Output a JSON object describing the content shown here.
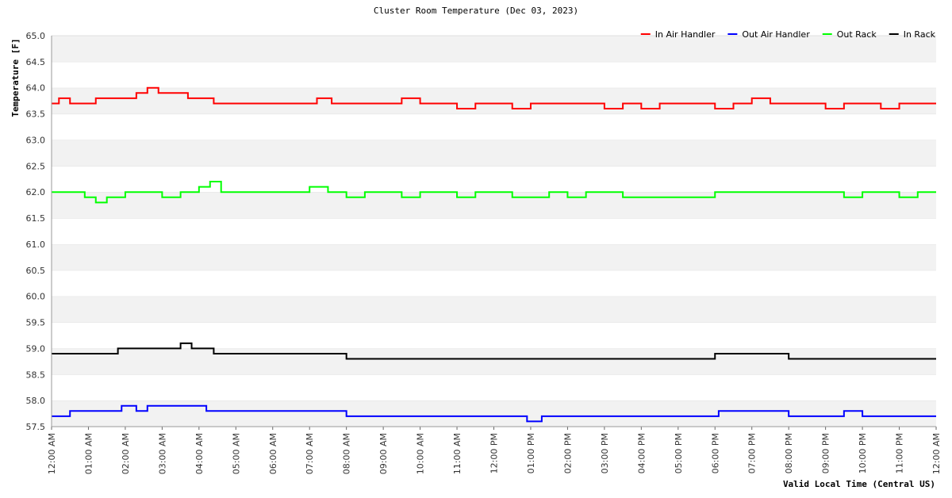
{
  "chart_data": {
    "type": "line",
    "title": "Cluster Room Temperature (Dec 03, 2023)",
    "xlabel": "Valid Local Time (Central US)",
    "ylabel": "Temperature [F]",
    "ylim": [
      57.5,
      65.0
    ],
    "y_ticks": [
      "57.5",
      "58.0",
      "58.5",
      "59.0",
      "59.5",
      "60.0",
      "60.5",
      "61.0",
      "61.5",
      "62.0",
      "62.5",
      "63.0",
      "63.5",
      "64.0",
      "64.5",
      "65.0"
    ],
    "x_range_hours": [
      0,
      24
    ],
    "x_ticks": [
      "12:00 AM",
      "01:00 AM",
      "02:00 AM",
      "03:00 AM",
      "04:00 AM",
      "05:00 AM",
      "06:00 AM",
      "07:00 AM",
      "08:00 AM",
      "09:00 AM",
      "10:00 AM",
      "11:00 AM",
      "12:00 PM",
      "01:00 PM",
      "02:00 PM",
      "03:00 PM",
      "04:00 PM",
      "05:00 PM",
      "06:00 PM",
      "07:00 PM",
      "08:00 PM",
      "09:00 PM",
      "10:00 PM",
      "11:00 PM",
      "12:00 AM"
    ],
    "grid": "horizontal alternating bands",
    "legend_position": "top-right",
    "series": [
      {
        "name": "In Air Handler",
        "color": "#ff0000",
        "points": [
          [
            0.0,
            63.7
          ],
          [
            0.2,
            63.8
          ],
          [
            0.5,
            63.7
          ],
          [
            0.8,
            63.7
          ],
          [
            1.2,
            63.8
          ],
          [
            1.6,
            63.8
          ],
          [
            2.0,
            63.8
          ],
          [
            2.3,
            63.9
          ],
          [
            2.6,
            64.0
          ],
          [
            2.9,
            63.9
          ],
          [
            3.3,
            63.9
          ],
          [
            3.7,
            63.8
          ],
          [
            4.0,
            63.8
          ],
          [
            4.4,
            63.7
          ],
          [
            4.8,
            63.7
          ],
          [
            5.2,
            63.7
          ],
          [
            5.6,
            63.7
          ],
          [
            6.0,
            63.7
          ],
          [
            6.4,
            63.7
          ],
          [
            6.8,
            63.7
          ],
          [
            7.2,
            63.8
          ],
          [
            7.6,
            63.7
          ],
          [
            8.0,
            63.7
          ],
          [
            8.5,
            63.7
          ],
          [
            9.0,
            63.7
          ],
          [
            9.5,
            63.8
          ],
          [
            10.0,
            63.7
          ],
          [
            10.5,
            63.7
          ],
          [
            11.0,
            63.6
          ],
          [
            11.5,
            63.7
          ],
          [
            12.0,
            63.7
          ],
          [
            12.5,
            63.6
          ],
          [
            13.0,
            63.7
          ],
          [
            13.5,
            63.7
          ],
          [
            14.0,
            63.7
          ],
          [
            14.5,
            63.7
          ],
          [
            15.0,
            63.6
          ],
          [
            15.5,
            63.7
          ],
          [
            16.0,
            63.6
          ],
          [
            16.5,
            63.7
          ],
          [
            17.0,
            63.7
          ],
          [
            17.5,
            63.7
          ],
          [
            18.0,
            63.6
          ],
          [
            18.5,
            63.7
          ],
          [
            19.0,
            63.8
          ],
          [
            19.5,
            63.7
          ],
          [
            20.0,
            63.7
          ],
          [
            20.5,
            63.7
          ],
          [
            21.0,
            63.6
          ],
          [
            21.5,
            63.7
          ],
          [
            22.0,
            63.7
          ],
          [
            22.5,
            63.6
          ],
          [
            23.0,
            63.7
          ],
          [
            23.5,
            63.7
          ],
          [
            24.0,
            63.7
          ]
        ]
      },
      {
        "name": "Out Air Handler",
        "color": "#0000ff",
        "points": [
          [
            0.0,
            57.7
          ],
          [
            0.5,
            57.8
          ],
          [
            1.0,
            57.8
          ],
          [
            1.5,
            57.8
          ],
          [
            1.9,
            57.9
          ],
          [
            2.3,
            57.8
          ],
          [
            2.6,
            57.9
          ],
          [
            3.0,
            57.9
          ],
          [
            3.5,
            57.9
          ],
          [
            4.2,
            57.8
          ],
          [
            4.6,
            57.8
          ],
          [
            5.0,
            57.8
          ],
          [
            5.5,
            57.8
          ],
          [
            6.0,
            57.8
          ],
          [
            6.5,
            57.8
          ],
          [
            7.0,
            57.8
          ],
          [
            7.5,
            57.8
          ],
          [
            8.0,
            57.7
          ],
          [
            8.5,
            57.7
          ],
          [
            9.0,
            57.7
          ],
          [
            9.5,
            57.7
          ],
          [
            10.0,
            57.7
          ],
          [
            10.5,
            57.7
          ],
          [
            11.0,
            57.7
          ],
          [
            11.5,
            57.7
          ],
          [
            12.0,
            57.7
          ],
          [
            12.5,
            57.7
          ],
          [
            12.9,
            57.6
          ],
          [
            13.3,
            57.7
          ],
          [
            14.0,
            57.7
          ],
          [
            14.5,
            57.7
          ],
          [
            15.0,
            57.7
          ],
          [
            15.5,
            57.7
          ],
          [
            16.0,
            57.7
          ],
          [
            16.5,
            57.7
          ],
          [
            17.0,
            57.7
          ],
          [
            17.5,
            57.7
          ],
          [
            18.1,
            57.8
          ],
          [
            18.5,
            57.8
          ],
          [
            19.0,
            57.8
          ],
          [
            19.5,
            57.8
          ],
          [
            20.0,
            57.7
          ],
          [
            20.5,
            57.7
          ],
          [
            21.0,
            57.7
          ],
          [
            21.5,
            57.8
          ],
          [
            22.0,
            57.7
          ],
          [
            22.5,
            57.7
          ],
          [
            23.0,
            57.7
          ],
          [
            23.5,
            57.7
          ],
          [
            24.0,
            57.7
          ]
        ]
      },
      {
        "name": "Out Rack",
        "color": "#00ff00",
        "points": [
          [
            0.0,
            62.0
          ],
          [
            0.5,
            62.0
          ],
          [
            0.9,
            61.9
          ],
          [
            1.2,
            61.8
          ],
          [
            1.5,
            61.9
          ],
          [
            2.0,
            62.0
          ],
          [
            2.5,
            62.0
          ],
          [
            3.0,
            61.9
          ],
          [
            3.5,
            62.0
          ],
          [
            4.0,
            62.1
          ],
          [
            4.3,
            62.2
          ],
          [
            4.6,
            62.0
          ],
          [
            5.0,
            62.0
          ],
          [
            5.5,
            62.0
          ],
          [
            6.0,
            62.0
          ],
          [
            6.5,
            62.0
          ],
          [
            7.0,
            62.1
          ],
          [
            7.5,
            62.0
          ],
          [
            8.0,
            61.9
          ],
          [
            8.5,
            62.0
          ],
          [
            9.0,
            62.0
          ],
          [
            9.5,
            61.9
          ],
          [
            10.0,
            62.0
          ],
          [
            10.5,
            62.0
          ],
          [
            11.0,
            61.9
          ],
          [
            11.5,
            62.0
          ],
          [
            12.0,
            62.0
          ],
          [
            12.5,
            61.9
          ],
          [
            13.0,
            61.9
          ],
          [
            13.5,
            62.0
          ],
          [
            14.0,
            61.9
          ],
          [
            14.5,
            62.0
          ],
          [
            15.0,
            62.0
          ],
          [
            15.5,
            61.9
          ],
          [
            16.0,
            61.9
          ],
          [
            16.5,
            61.9
          ],
          [
            17.0,
            61.9
          ],
          [
            17.5,
            61.9
          ],
          [
            18.0,
            62.0
          ],
          [
            18.5,
            62.0
          ],
          [
            19.0,
            62.0
          ],
          [
            19.5,
            62.0
          ],
          [
            20.0,
            62.0
          ],
          [
            20.5,
            62.0
          ],
          [
            21.0,
            62.0
          ],
          [
            21.5,
            61.9
          ],
          [
            22.0,
            62.0
          ],
          [
            22.5,
            62.0
          ],
          [
            23.0,
            61.9
          ],
          [
            23.5,
            62.0
          ],
          [
            24.0,
            62.0
          ]
        ]
      },
      {
        "name": "In Rack",
        "color": "#000000",
        "points": [
          [
            0.0,
            58.9
          ],
          [
            0.5,
            58.9
          ],
          [
            1.0,
            58.9
          ],
          [
            1.5,
            58.9
          ],
          [
            1.8,
            59.0
          ],
          [
            2.2,
            59.0
          ],
          [
            2.7,
            59.0
          ],
          [
            3.2,
            59.0
          ],
          [
            3.5,
            59.1
          ],
          [
            3.8,
            59.0
          ],
          [
            4.4,
            58.9
          ],
          [
            4.8,
            58.9
          ],
          [
            5.2,
            58.9
          ],
          [
            5.8,
            58.9
          ],
          [
            6.3,
            58.9
          ],
          [
            6.8,
            58.9
          ],
          [
            7.2,
            58.9
          ],
          [
            7.6,
            58.9
          ],
          [
            8.0,
            58.8
          ],
          [
            8.5,
            58.8
          ],
          [
            9.0,
            58.8
          ],
          [
            9.5,
            58.8
          ],
          [
            10.0,
            58.8
          ],
          [
            10.5,
            58.8
          ],
          [
            11.0,
            58.8
          ],
          [
            11.5,
            58.8
          ],
          [
            12.0,
            58.8
          ],
          [
            12.5,
            58.8
          ],
          [
            13.0,
            58.8
          ],
          [
            13.5,
            58.8
          ],
          [
            14.0,
            58.8
          ],
          [
            14.5,
            58.8
          ],
          [
            15.0,
            58.8
          ],
          [
            15.5,
            58.8
          ],
          [
            16.0,
            58.8
          ],
          [
            16.5,
            58.8
          ],
          [
            17.0,
            58.8
          ],
          [
            17.5,
            58.8
          ],
          [
            18.0,
            58.9
          ],
          [
            18.5,
            58.9
          ],
          [
            19.0,
            58.9
          ],
          [
            19.5,
            58.9
          ],
          [
            20.0,
            58.8
          ],
          [
            20.5,
            58.8
          ],
          [
            21.0,
            58.8
          ],
          [
            21.5,
            58.8
          ],
          [
            22.0,
            58.8
          ],
          [
            22.5,
            58.8
          ],
          [
            23.0,
            58.8
          ],
          [
            23.5,
            58.8
          ],
          [
            24.0,
            58.8
          ]
        ]
      }
    ]
  }
}
